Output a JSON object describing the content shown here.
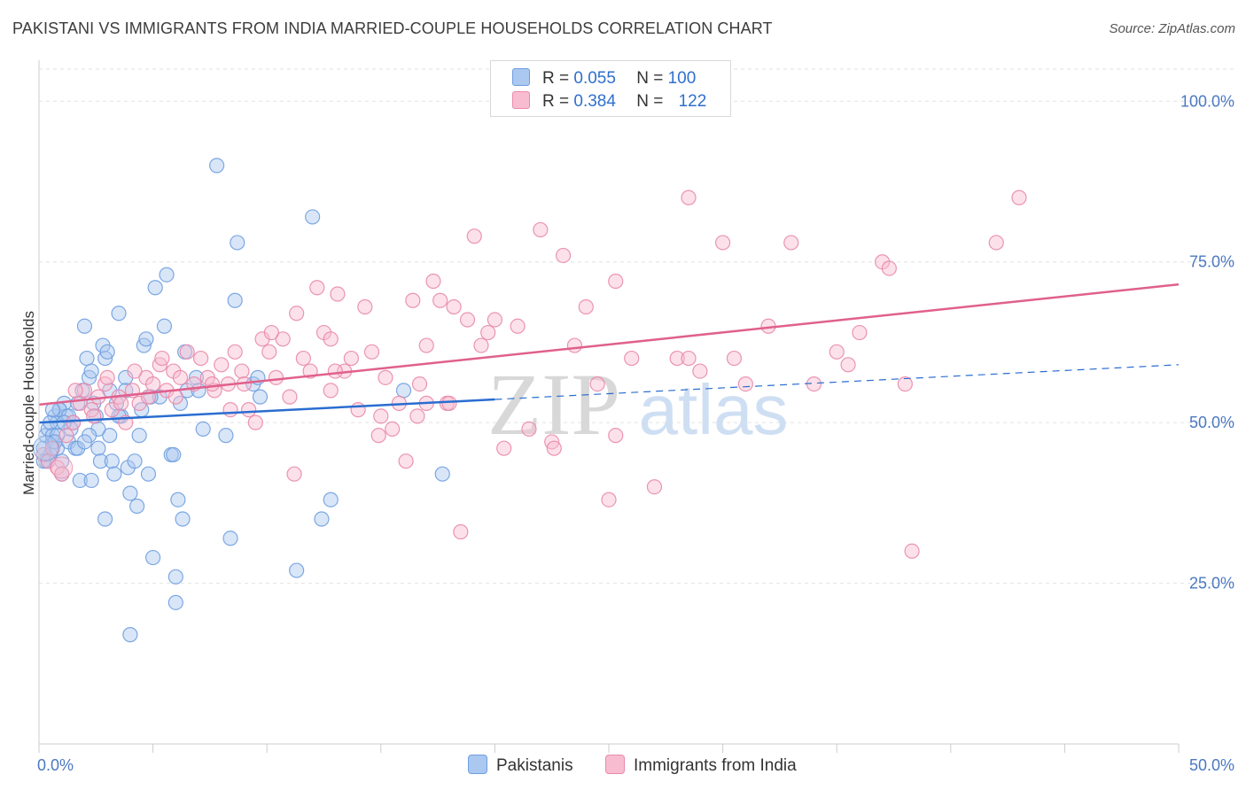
{
  "title": "PAKISTANI VS IMMIGRANTS FROM INDIA MARRIED-COUPLE HOUSEHOLDS CORRELATION CHART",
  "source": "Source: ZipAtlas.com",
  "watermark": {
    "zip": "ZIP",
    "atlas": "atlas"
  },
  "legend_top": {
    "r_label": "R =",
    "n_label": "N =",
    "rows": [
      {
        "r": "0.055",
        "n": "100",
        "color": "#aac8f0",
        "border": "#6f9ee0"
      },
      {
        "r": "0.384",
        "n": "122",
        "color": "#f8bcd0",
        "border": "#e98aaa"
      }
    ]
  },
  "legend_bottom": [
    {
      "label": "Pakistanis",
      "color": "#aac8f0",
      "border": "#6f9ee0"
    },
    {
      "label": "Immigrants from India",
      "color": "#f8bcd0",
      "border": "#e98aaa"
    }
  ],
  "chart_data": {
    "type": "scatter",
    "title": "PAKISTANI VS IMMIGRANTS FROM INDIA MARRIED-COUPLE HOUSEHOLDS CORRELATION CHART",
    "xlabel": "",
    "ylabel": "Married-couple Households",
    "xlim": [
      0,
      50
    ],
    "ylim": [
      0,
      105
    ],
    "x_tick_labels": [
      "0.0%",
      "50.0%"
    ],
    "y_ticks": [
      25,
      50,
      75,
      100
    ],
    "y_tick_labels": [
      "25.0%",
      "50.0%",
      "75.0%",
      "100.0%"
    ],
    "grid": true,
    "legend_position": "top-center",
    "series": [
      {
        "name": "Pakistanis",
        "color": "#6f9ee0",
        "fill": "#aac8f0",
        "trend": {
          "x0": 0,
          "y0": 50.0,
          "x1": 20,
          "y1": 53.6,
          "dash_x1": 50,
          "dash_y1": 59.0,
          "color": "#2a6dd0"
        },
        "points": [
          [
            0.2,
            46
          ],
          [
            0.3,
            48
          ],
          [
            0.4,
            49
          ],
          [
            0.5,
            45
          ],
          [
            0.6,
            47
          ],
          [
            0.7,
            51
          ],
          [
            0.8,
            50
          ],
          [
            0.9,
            52
          ],
          [
            1.0,
            44
          ],
          [
            1.1,
            53
          ],
          [
            0.3,
            44
          ],
          [
            0.5,
            50
          ],
          [
            0.6,
            48
          ],
          [
            0.8,
            46
          ],
          [
            1.2,
            51
          ],
          [
            1.3,
            47
          ],
          [
            1.5,
            50
          ],
          [
            1.6,
            46
          ],
          [
            1.7,
            53
          ],
          [
            1.8,
            41
          ],
          [
            1.4,
            49
          ],
          [
            1.9,
            55
          ],
          [
            2.0,
            65
          ],
          [
            2.1,
            60
          ],
          [
            2.2,
            57
          ],
          [
            2.4,
            53
          ],
          [
            2.5,
            51
          ],
          [
            2.6,
            46
          ],
          [
            2.7,
            44
          ],
          [
            2.8,
            62
          ],
          [
            2.3,
            58
          ],
          [
            2.9,
            60
          ],
          [
            3.0,
            61
          ],
          [
            3.1,
            48
          ],
          [
            3.2,
            44
          ],
          [
            3.3,
            42
          ],
          [
            3.4,
            53
          ],
          [
            3.5,
            67
          ],
          [
            3.6,
            51
          ],
          [
            3.8,
            57
          ],
          [
            3.9,
            43
          ],
          [
            4.0,
            39
          ],
          [
            4.2,
            44
          ],
          [
            4.4,
            48
          ],
          [
            4.5,
            52
          ],
          [
            4.6,
            62
          ],
          [
            4.7,
            63
          ],
          [
            4.8,
            42
          ],
          [
            5.0,
            29
          ],
          [
            5.1,
            71
          ],
          [
            5.3,
            54
          ],
          [
            5.5,
            65
          ],
          [
            5.6,
            73
          ],
          [
            5.8,
            45
          ],
          [
            6.0,
            26
          ],
          [
            6.1,
            38
          ],
          [
            6.2,
            53
          ],
          [
            6.3,
            35
          ],
          [
            6.4,
            61
          ],
          [
            6.5,
            55
          ],
          [
            6.9,
            57
          ],
          [
            7.0,
            55
          ],
          [
            7.2,
            49
          ],
          [
            7.8,
            90
          ],
          [
            8.2,
            48
          ],
          [
            8.4,
            32
          ],
          [
            8.6,
            69
          ],
          [
            8.7,
            78
          ],
          [
            9.4,
            56
          ],
          [
            9.6,
            57
          ],
          [
            9.7,
            54
          ],
          [
            12.0,
            82
          ],
          [
            12.8,
            38
          ],
          [
            12.4,
            35
          ],
          [
            11.3,
            27
          ],
          [
            4.0,
            17
          ],
          [
            6.0,
            22
          ],
          [
            16.0,
            55
          ],
          [
            17.7,
            42
          ],
          [
            4.3,
            37
          ],
          [
            2.3,
            41
          ],
          [
            2.9,
            35
          ],
          [
            3.8,
            55
          ],
          [
            1.0,
            42
          ],
          [
            0.9,
            52
          ],
          [
            1.7,
            46
          ],
          [
            2.6,
            49
          ],
          [
            0.4,
            44
          ],
          [
            0.8,
            48
          ],
          [
            1.3,
            51
          ],
          [
            5.9,
            45
          ],
          [
            4.9,
            54
          ],
          [
            3.5,
            51
          ],
          [
            2.2,
            48
          ],
          [
            0.6,
            52
          ],
          [
            1.1,
            50
          ],
          [
            0.2,
            44
          ],
          [
            0.7,
            47
          ],
          [
            3.1,
            55
          ],
          [
            2.0,
            47
          ]
        ]
      },
      {
        "name": "Immigrants from India",
        "color": "#e98aaa",
        "fill": "#f8bcd0",
        "trend": {
          "x0": 0,
          "y0": 52.8,
          "x1": 50,
          "y1": 71.5,
          "color": "#e0608c"
        },
        "points": [
          [
            0.2,
            45
          ],
          [
            0.4,
            44
          ],
          [
            0.6,
            46
          ],
          [
            0.8,
            43
          ],
          [
            1.0,
            42
          ],
          [
            1.2,
            48
          ],
          [
            1.5,
            50
          ],
          [
            1.8,
            53
          ],
          [
            2.0,
            55
          ],
          [
            2.3,
            52
          ],
          [
            2.6,
            54
          ],
          [
            2.9,
            56
          ],
          [
            3.2,
            52
          ],
          [
            3.5,
            54
          ],
          [
            3.8,
            50
          ],
          [
            4.1,
            55
          ],
          [
            4.4,
            53
          ],
          [
            4.7,
            57
          ],
          [
            5.0,
            56
          ],
          [
            5.3,
            59
          ],
          [
            5.6,
            55
          ],
          [
            5.9,
            58
          ],
          [
            6.2,
            57
          ],
          [
            6.5,
            61
          ],
          [
            6.8,
            56
          ],
          [
            7.1,
            60
          ],
          [
            7.4,
            57
          ],
          [
            7.7,
            55
          ],
          [
            8.0,
            59
          ],
          [
            8.3,
            56
          ],
          [
            8.6,
            61
          ],
          [
            8.9,
            58
          ],
          [
            9.2,
            52
          ],
          [
            9.5,
            50
          ],
          [
            9.8,
            63
          ],
          [
            10.1,
            61
          ],
          [
            10.4,
            57
          ],
          [
            10.7,
            63
          ],
          [
            11.0,
            54
          ],
          [
            11.3,
            67
          ],
          [
            11.6,
            60
          ],
          [
            11.9,
            58
          ],
          [
            12.2,
            71
          ],
          [
            12.5,
            64
          ],
          [
            12.8,
            55
          ],
          [
            13.1,
            70
          ],
          [
            13.4,
            58
          ],
          [
            13.7,
            60
          ],
          [
            14.0,
            52
          ],
          [
            14.3,
            68
          ],
          [
            14.6,
            61
          ],
          [
            14.9,
            48
          ],
          [
            15.2,
            57
          ],
          [
            15.5,
            49
          ],
          [
            15.8,
            53
          ],
          [
            16.1,
            44
          ],
          [
            16.4,
            69
          ],
          [
            16.7,
            56
          ],
          [
            17.0,
            62
          ],
          [
            17.3,
            72
          ],
          [
            17.6,
            69
          ],
          [
            17.9,
            53
          ],
          [
            18.2,
            68
          ],
          [
            18.5,
            33
          ],
          [
            18.8,
            66
          ],
          [
            19.1,
            79
          ],
          [
            19.4,
            62
          ],
          [
            19.7,
            64
          ],
          [
            20.0,
            66
          ],
          [
            20.4,
            46
          ],
          [
            21.0,
            65
          ],
          [
            21.5,
            49
          ],
          [
            22.0,
            80
          ],
          [
            22.5,
            47
          ],
          [
            23.0,
            76
          ],
          [
            23.5,
            62
          ],
          [
            24.0,
            68
          ],
          [
            24.5,
            56
          ],
          [
            25.0,
            38
          ],
          [
            25.3,
            72
          ],
          [
            26.0,
            60
          ],
          [
            27.0,
            40
          ],
          [
            28.0,
            60
          ],
          [
            28.5,
            85
          ],
          [
            29.0,
            58
          ],
          [
            30.0,
            78
          ],
          [
            30.5,
            60
          ],
          [
            31.0,
            56
          ],
          [
            32.0,
            65
          ],
          [
            33.0,
            78
          ],
          [
            34.0,
            56
          ],
          [
            35.0,
            61
          ],
          [
            35.5,
            59
          ],
          [
            36.0,
            64
          ],
          [
            37.0,
            75
          ],
          [
            37.3,
            74
          ],
          [
            38.0,
            56
          ],
          [
            38.3,
            30
          ],
          [
            42.0,
            78
          ],
          [
            43.0,
            85
          ],
          [
            1.6,
            55
          ],
          [
            2.4,
            51
          ],
          [
            3.0,
            57
          ],
          [
            3.6,
            53
          ],
          [
            4.2,
            58
          ],
          [
            4.8,
            54
          ],
          [
            5.4,
            60
          ],
          [
            6.0,
            54
          ],
          [
            7.6,
            56
          ],
          [
            8.4,
            52
          ],
          [
            9.0,
            56
          ],
          [
            10.2,
            64
          ],
          [
            11.2,
            42
          ],
          [
            13.0,
            58
          ],
          [
            15.0,
            51
          ],
          [
            16.6,
            51
          ],
          [
            17.0,
            53
          ],
          [
            18.0,
            53
          ],
          [
            22.6,
            46
          ],
          [
            25.3,
            48
          ],
          [
            12.8,
            63
          ],
          [
            28.5,
            60
          ]
        ]
      }
    ]
  }
}
